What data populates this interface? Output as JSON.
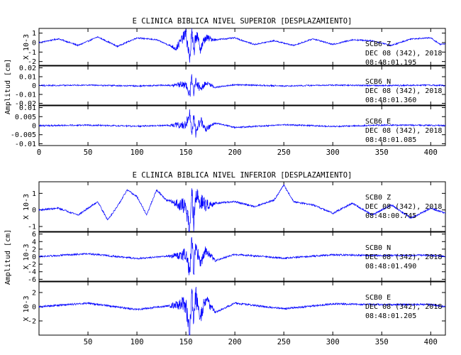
{
  "chart_data": [
    {
      "type": "line",
      "title": "E CLINICA BIBLICA NIVEL SUPERIOR [DESPLAZAMIENTO]",
      "ylabel": "Amplitud [cm]",
      "xlim": [
        0,
        415
      ],
      "xticks": [
        0,
        50,
        100,
        150,
        200,
        250,
        300,
        350,
        400
      ],
      "series_color": "#0000ff",
      "panels": [
        {
          "station": "SCB6",
          "component": "Z",
          "date": "DEC 08 (342), 2018",
          "time": "08:48:01.195",
          "unit_label": "X 10-3",
          "ylim": [
            -2.4,
            1.5
          ],
          "yticks": [
            1,
            0,
            -1,
            -2
          ],
          "series": [
            {
              "name": "SCB6 Z",
              "x": [
                0,
                20,
                40,
                60,
                80,
                100,
                120,
                140,
                150,
                154,
                156,
                158,
                160,
                165,
                170,
                180,
                200,
                220,
                240,
                260,
                280,
                300,
                320,
                340,
                360,
                380,
                400,
                410,
                415
              ],
              "y": [
                0.0,
                0.4,
                -0.3,
                0.6,
                -0.4,
                0.5,
                0.3,
                -0.6,
                1.0,
                -1.8,
                1.3,
                -1.2,
                0.9,
                -0.6,
                0.5,
                0.3,
                0.5,
                -0.2,
                0.2,
                -0.3,
                0.4,
                -0.2,
                0.3,
                0.2,
                -0.3,
                0.4,
                0.5,
                -0.2,
                -0.1
              ]
            }
          ]
        },
        {
          "station": "SCB6",
          "component": "N",
          "date": "DEC 08 (342), 2018",
          "time": "08:48:01.360",
          "unit_label": "",
          "ylim": [
            -0.022,
            0.022
          ],
          "yticks": [
            0.02,
            0.01,
            0.0,
            -0.01,
            -0.02
          ],
          "series": [
            {
              "name": "SCB6 N",
              "x": [
                0,
                50,
                100,
                150,
                154,
                156,
                158,
                160,
                165,
                170,
                180,
                200,
                250,
                300,
                350,
                400,
                415
              ],
              "y": [
                0.0,
                0.0005,
                -0.0005,
                0.001,
                -0.012,
                0.009,
                -0.007,
                0.006,
                -0.004,
                0.003,
                -0.002,
                0.001,
                -0.0005,
                0.0005,
                0.0,
                0.0004,
                0.0
              ]
            }
          ]
        },
        {
          "station": "SCB6",
          "component": "E",
          "date": "DEC 08 (342), 2018",
          "time": "08:48:01.085",
          "unit_label": "",
          "ylim": [
            -0.011,
            0.011
          ],
          "yticks": [
            0.01,
            0.005,
            0.0,
            -0.005,
            -0.01
          ],
          "series": [
            {
              "name": "SCB6 E",
              "x": [
                0,
                50,
                100,
                150,
                154,
                156,
                158,
                160,
                165,
                170,
                180,
                200,
                250,
                300,
                350,
                400,
                415
              ],
              "y": [
                0.0,
                0.0003,
                -0.0003,
                0.0005,
                0.0068,
                -0.006,
                0.005,
                -0.004,
                0.003,
                -0.002,
                0.0015,
                -0.001,
                0.0005,
                -0.0004,
                0.0003,
                0.0002,
                0.0
              ]
            }
          ]
        }
      ]
    },
    {
      "type": "line",
      "title": "E CLINICA BIBLICA NIVEL INFERIOR [DESPLAZAMIENTO]",
      "ylabel": "Amplitud [cm]",
      "xlim": [
        0,
        415
      ],
      "xticks": [
        50,
        100,
        150,
        200,
        250,
        300,
        350,
        400
      ],
      "series_color": "#0000ff",
      "panels": [
        {
          "station": "SCB0",
          "component": "Z",
          "date": "DEC 08 (342), 2018",
          "time": "08:48:00.745",
          "unit_label": "X 10-3",
          "ylim": [
            -1.3,
            1.7
          ],
          "yticks": [
            1,
            0,
            -1
          ],
          "series": [
            {
              "name": "SCB0 Z",
              "x": [
                0,
                20,
                40,
                60,
                70,
                80,
                90,
                100,
                110,
                120,
                130,
                140,
                150,
                154,
                156,
                158,
                160,
                170,
                180,
                200,
                220,
                240,
                250,
                260,
                280,
                300,
                320,
                340,
                360,
                380,
                400,
                415
              ],
              "y": [
                0.0,
                0.1,
                -0.3,
                0.5,
                -0.6,
                0.2,
                1.2,
                0.8,
                -0.3,
                1.2,
                0.6,
                0.4,
                0.2,
                -1.1,
                1.1,
                -1.0,
                0.8,
                0.3,
                0.4,
                0.5,
                0.2,
                0.6,
                1.5,
                0.5,
                0.3,
                -0.2,
                0.4,
                -0.3,
                0.3,
                -0.5,
                0.1,
                -0.2
              ]
            }
          ]
        },
        {
          "station": "SCB0",
          "component": "N",
          "date": "DEC 08 (342), 2018",
          "time": "08:48:01.490",
          "unit_label": "X 10-3",
          "ylim": [
            -6.5,
            6.5
          ],
          "yticks": [
            6,
            4,
            2,
            0,
            -2,
            -4,
            -6
          ],
          "series": [
            {
              "name": "SCB0 N",
              "x": [
                0,
                50,
                100,
                150,
                154,
                156,
                158,
                160,
                165,
                170,
                180,
                200,
                250,
                300,
                350,
                400,
                415
              ],
              "y": [
                0.0,
                0.8,
                -0.5,
                0.5,
                -4.5,
                4.8,
                -3.5,
                2.5,
                -2.0,
                1.5,
                -1.0,
                0.6,
                -0.4,
                0.5,
                0.3,
                0.4,
                0.0
              ]
            }
          ]
        },
        {
          "station": "SCB0",
          "component": "E",
          "date": "DEC 08 (342), 2018",
          "time": "08:48:01.205",
          "unit_label": "X 10-3",
          "ylim": [
            -4.0,
            3.5
          ],
          "yticks": [
            2,
            0,
            -2
          ],
          "series": [
            {
              "name": "SCB0 E",
              "x": [
                0,
                50,
                100,
                150,
                154,
                156,
                158,
                160,
                165,
                170,
                180,
                200,
                250,
                300,
                350,
                400,
                415
              ],
              "y": [
                0.0,
                0.5,
                -0.4,
                0.4,
                -3.6,
                2.4,
                -2.0,
                1.5,
                -1.2,
                1.0,
                -0.8,
                0.5,
                -0.3,
                0.4,
                0.3,
                0.3,
                0.0
              ]
            }
          ]
        }
      ]
    }
  ]
}
